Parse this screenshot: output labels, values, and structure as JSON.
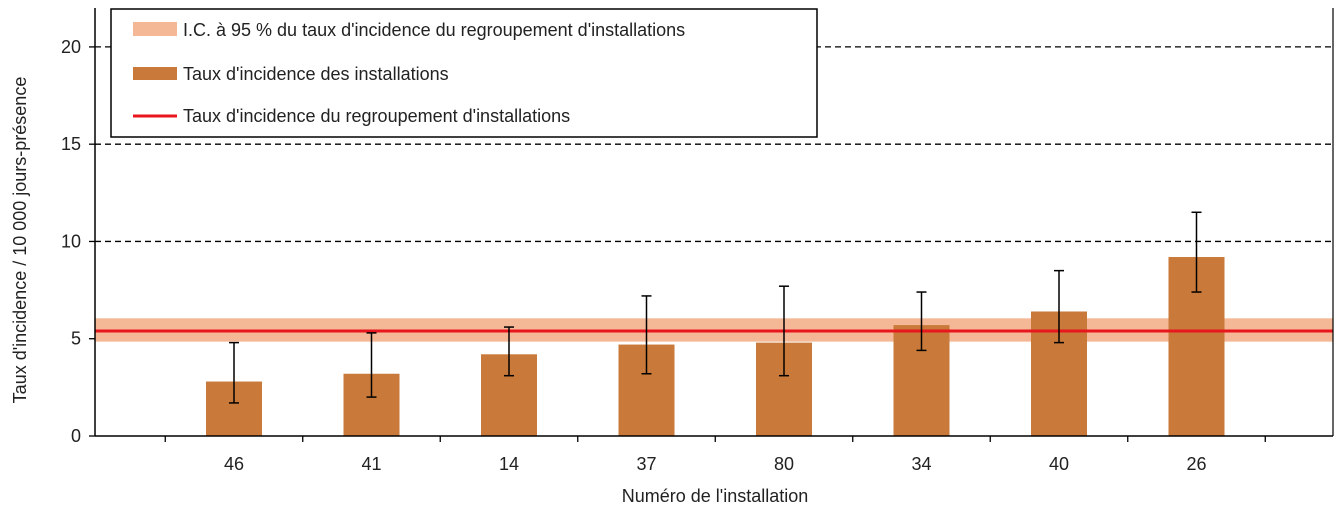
{
  "chart_data": {
    "type": "bar",
    "title": "",
    "xlabel": "Numéro de l'installation",
    "ylabel": "Taux d'incidence / 10 000 jours-présence",
    "categories": [
      "46",
      "41",
      "14",
      "37",
      "80",
      "34",
      "40",
      "26"
    ],
    "values": [
      2.8,
      3.2,
      4.2,
      4.7,
      4.8,
      5.7,
      6.4,
      9.2
    ],
    "error_low": [
      1.7,
      2.0,
      3.1,
      3.2,
      3.1,
      4.4,
      4.8,
      7.4
    ],
    "error_high": [
      4.8,
      5.3,
      5.6,
      7.2,
      7.7,
      7.4,
      8.5,
      11.5
    ],
    "ylim": [
      0,
      22
    ],
    "yticks": [
      0,
      5,
      10,
      15,
      20
    ],
    "grid": "dashed horizontal lines at 10, 15, 20",
    "reference_line": {
      "value": 5.4,
      "ci_low": 4.85,
      "ci_high": 6.05
    },
    "colors": {
      "bar": "#c97a3a",
      "ci_band": "#f5b896",
      "reference_line": "#e8161d",
      "grid": "#000000"
    },
    "legend": {
      "position": "top-left",
      "entries": [
        {
          "label": "I.C. à 95 % du taux d'incidence du regroupement d'installations",
          "symbol": "band"
        },
        {
          "label": "Taux d'incidence des installations",
          "symbol": "bar"
        },
        {
          "label": "Taux d'incidence du regroupement d'installations",
          "symbol": "line"
        }
      ]
    }
  }
}
